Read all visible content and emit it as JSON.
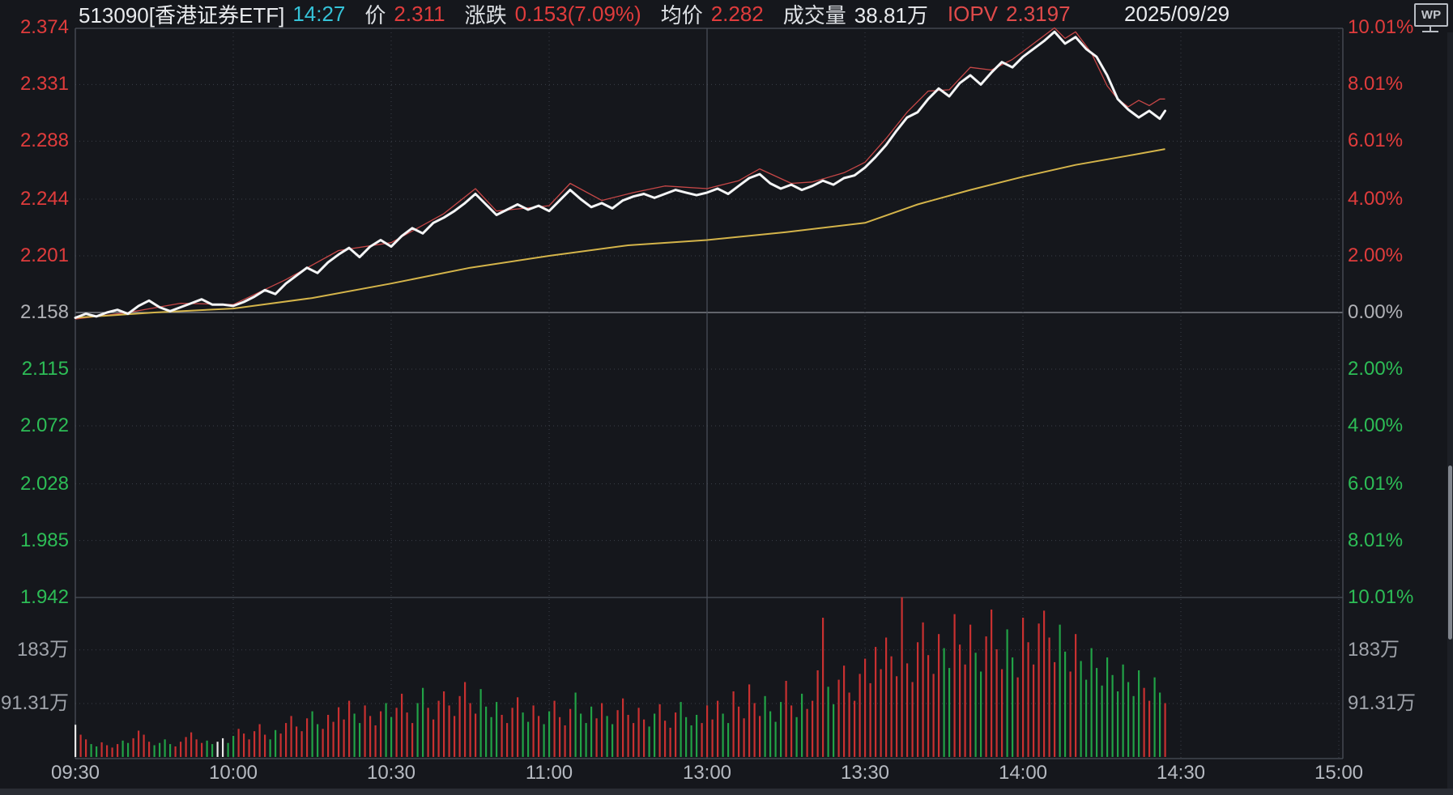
{
  "header": {
    "code_title": "513090[香港证券ETF]",
    "time": "14:27",
    "price_label": "价",
    "price_value": "2.311",
    "change_label": "涨跌",
    "change_value": "0.153(7.09%)",
    "avg_label": "均价",
    "avg_value": "2.282",
    "volume_label": "成交量",
    "volume_value": "38.81万",
    "iopv_label": "IOPV",
    "iopv_value": "2.3197",
    "date": "2025/09/29",
    "logo": "WP"
  },
  "axes": {
    "price_labels": [
      {
        "text": "2.374",
        "color": "#e03c3c"
      },
      {
        "text": "2.331",
        "color": "#e03c3c"
      },
      {
        "text": "2.288",
        "color": "#e03c3c"
      },
      {
        "text": "2.244",
        "color": "#e03c3c"
      },
      {
        "text": "2.201",
        "color": "#e03c3c"
      },
      {
        "text": "2.158",
        "color": "#b0b1b6"
      },
      {
        "text": "2.115",
        "color": "#2dbd56"
      },
      {
        "text": "2.072",
        "color": "#2dbd56"
      },
      {
        "text": "2.028",
        "color": "#2dbd56"
      },
      {
        "text": "1.985",
        "color": "#2dbd56"
      },
      {
        "text": "1.942",
        "color": "#2dbd56"
      }
    ],
    "pct_labels": [
      {
        "text": "10.01%",
        "color": "#e03c3c"
      },
      {
        "text": "8.01%",
        "color": "#e03c3c"
      },
      {
        "text": "6.01%",
        "color": "#e03c3c"
      },
      {
        "text": "4.00%",
        "color": "#e03c3c"
      },
      {
        "text": "2.00%",
        "color": "#e03c3c"
      },
      {
        "text": "0.00%",
        "color": "#b0b1b6"
      },
      {
        "text": "2.00%",
        "color": "#2dbd56"
      },
      {
        "text": "4.00%",
        "color": "#2dbd56"
      },
      {
        "text": "6.01%",
        "color": "#2dbd56"
      },
      {
        "text": "8.01%",
        "color": "#2dbd56"
      },
      {
        "text": "10.01%",
        "color": "#2dbd56"
      }
    ],
    "volume_labels": [
      {
        "text": "183万",
        "value": 183
      },
      {
        "text": "91.31万",
        "value": 91.31
      }
    ],
    "time_labels": [
      "09:30",
      "10:00",
      "10:30",
      "11:00",
      "13:00",
      "13:30",
      "14:00",
      "14:30",
      "15:00"
    ]
  },
  "chart_data": {
    "type": "line",
    "title": "513090 香港证券ETF 分时走势 (intraday minute chart)",
    "prev_close": 2.158,
    "session_minutes": 240,
    "last_minute": 207,
    "y_left_price": [
      2.374,
      2.331,
      2.288,
      2.244,
      2.201,
      2.158,
      2.115,
      2.072,
      2.028,
      1.985,
      1.942
    ],
    "y_right_pct": [
      10.01,
      8.01,
      6.01,
      4.0,
      2.0,
      0.0,
      -2.0,
      -4.0,
      -6.01,
      -8.01,
      -10.01
    ],
    "x_tick_labels": [
      "09:30",
      "10:00",
      "10:30",
      "11:00",
      "13:00",
      "13:30",
      "14:00",
      "14:30",
      "15:00"
    ],
    "grid": true,
    "legend_position": "none",
    "volume_gridlines": [
      183,
      91.31
    ],
    "price_step_minutes": 2,
    "series": [
      {
        "name": "price",
        "color": "#f4f5f6",
        "values": [
          2.154,
          2.157,
          2.155,
          2.158,
          2.16,
          2.157,
          2.163,
          2.167,
          2.162,
          2.159,
          2.162,
          2.165,
          2.168,
          2.164,
          2.164,
          2.163,
          2.166,
          2.17,
          2.175,
          2.172,
          2.18,
          2.186,
          2.192,
          2.188,
          2.196,
          2.202,
          2.207,
          2.2,
          2.208,
          2.213,
          2.208,
          2.216,
          2.222,
          2.218,
          2.226,
          2.23,
          2.235,
          2.241,
          2.248,
          2.24,
          2.232,
          2.236,
          2.24,
          2.236,
          2.239,
          2.235,
          2.243,
          2.251,
          2.244,
          2.238,
          2.241,
          2.237,
          2.243,
          2.246,
          2.248,
          2.245,
          2.248,
          2.251,
          2.249,
          2.247,
          2.249,
          2.252,
          2.248,
          2.254,
          2.26,
          2.263,
          2.256,
          2.252,
          2.255,
          2.251,
          2.254,
          2.258,
          2.255,
          2.26,
          2.262,
          2.268,
          2.276,
          2.285,
          2.296,
          2.306,
          2.31,
          2.32,
          2.328,
          2.322,
          2.332,
          2.338,
          2.331,
          2.34,
          2.348,
          2.344,
          2.352,
          2.358,
          2.364,
          2.371,
          2.362,
          2.367,
          2.358,
          2.352,
          2.338,
          2.32,
          2.312,
          2.306,
          2.311,
          2.305,
          2.311
        ]
      },
      {
        "name": "avg_price",
        "color": "#d4b44a",
        "points": [
          [
            0,
            2.154
          ],
          [
            15,
            2.158
          ],
          [
            30,
            2.161
          ],
          [
            45,
            2.169
          ],
          [
            60,
            2.18
          ],
          [
            75,
            2.192
          ],
          [
            90,
            2.201
          ],
          [
            105,
            2.209
          ],
          [
            120,
            2.213
          ],
          [
            135,
            2.219
          ],
          [
            150,
            2.226
          ],
          [
            160,
            2.24
          ],
          [
            170,
            2.251
          ],
          [
            180,
            2.261
          ],
          [
            190,
            2.27
          ],
          [
            200,
            2.277
          ],
          [
            207,
            2.282
          ]
        ]
      },
      {
        "name": "iopv",
        "color": "#c74747",
        "points": [
          [
            0,
            2.153
          ],
          [
            10,
            2.158
          ],
          [
            20,
            2.165
          ],
          [
            30,
            2.164
          ],
          [
            40,
            2.183
          ],
          [
            50,
            2.205
          ],
          [
            60,
            2.211
          ],
          [
            70,
            2.233
          ],
          [
            76,
            2.252
          ],
          [
            80,
            2.235
          ],
          [
            90,
            2.239
          ],
          [
            94,
            2.256
          ],
          [
            100,
            2.243
          ],
          [
            106,
            2.249
          ],
          [
            112,
            2.254
          ],
          [
            120,
            2.252
          ],
          [
            126,
            2.258
          ],
          [
            130,
            2.267
          ],
          [
            136,
            2.256
          ],
          [
            140,
            2.257
          ],
          [
            146,
            2.264
          ],
          [
            150,
            2.272
          ],
          [
            154,
            2.29
          ],
          [
            158,
            2.31
          ],
          [
            162,
            2.326
          ],
          [
            166,
            2.327
          ],
          [
            170,
            2.344
          ],
          [
            174,
            2.342
          ],
          [
            178,
            2.35
          ],
          [
            182,
            2.362
          ],
          [
            186,
            2.374
          ],
          [
            188,
            2.366
          ],
          [
            190,
            2.371
          ],
          [
            193,
            2.355
          ],
          [
            196,
            2.33
          ],
          [
            198,
            2.32
          ],
          [
            200,
            2.314
          ],
          [
            202,
            2.319
          ],
          [
            204,
            2.315
          ],
          [
            206,
            2.32
          ],
          [
            207,
            2.32
          ]
        ]
      },
      {
        "name": "volume",
        "unit": "万",
        "color_up": "#c93030",
        "color_down": "#21a246",
        "color_flat": "#e8e8e8",
        "values": [
          55,
          38,
          30,
          22,
          18,
          25,
          20,
          16,
          22,
          28,
          24,
          32,
          45,
          38,
          26,
          20,
          24,
          30,
          22,
          18,
          26,
          34,
          42,
          30,
          24,
          28,
          22,
          26,
          32,
          24,
          36,
          48,
          40,
          30,
          44,
          56,
          38,
          30,
          46,
          40,
          58,
          70,
          52,
          44,
          66,
          78,
          56,
          48,
          72,
          60,
          85,
          64,
          96,
          74,
          58,
          88,
          70,
          54,
          78,
          92,
          68,
          84,
          108,
          76,
          58,
          92,
          118,
          84,
          64,
          96,
          112,
          88,
          70,
          104,
          128,
          92,
          74,
          116,
          86,
          68,
          94,
          72,
          58,
          84,
          102,
          76,
          60,
          88,
          70,
          56,
          78,
          96,
          68,
          54,
          82,
          110,
          74,
          58,
          86,
          66,
          92,
          70,
          56,
          80,
          100,
          72,
          58,
          84,
          64,
          52,
          74,
          90,
          62,
          50,
          76,
          94,
          68,
          54,
          72,
          58,
          88,
          64,
          96,
          74,
          58,
          112,
          86,
          66,
          124,
          92,
          70,
          104,
          78,
          60,
          94,
          130,
          88,
          68,
          108,
          82,
          96,
          148,
          238,
          120,
          90,
          132,
          156,
          110,
          96,
          142,
          168,
          126,
          188,
          150,
          204,
          172,
          138,
          273,
          160,
          128,
          196,
          230,
          174,
          142,
          210,
          186,
          152,
          244,
          192,
          158,
          226,
          178,
          146,
          206,
          252,
          184,
          150,
          218,
          170,
          136,
          238,
          196,
          158,
          228,
          250,
          204,
          162,
          226,
          180,
          146,
          210,
          164,
          132,
          186,
          152,
          122,
          170,
          140,
          112,
          158,
          128,
          104,
          148,
          118,
          96,
          136,
          110,
          92
        ]
      }
    ]
  },
  "colors": {
    "background": "#15171c",
    "up_red": "#e03c3c",
    "down_green": "#2dbd56",
    "neutral_gray": "#b0b1b6",
    "grid_dotted": "#3b3f48",
    "frame": "#4b4f59",
    "zero_line": "#90949c",
    "price_line": "#f4f5f6",
    "avg_line": "#d4b44a",
    "iopv_line": "#c74747"
  }
}
